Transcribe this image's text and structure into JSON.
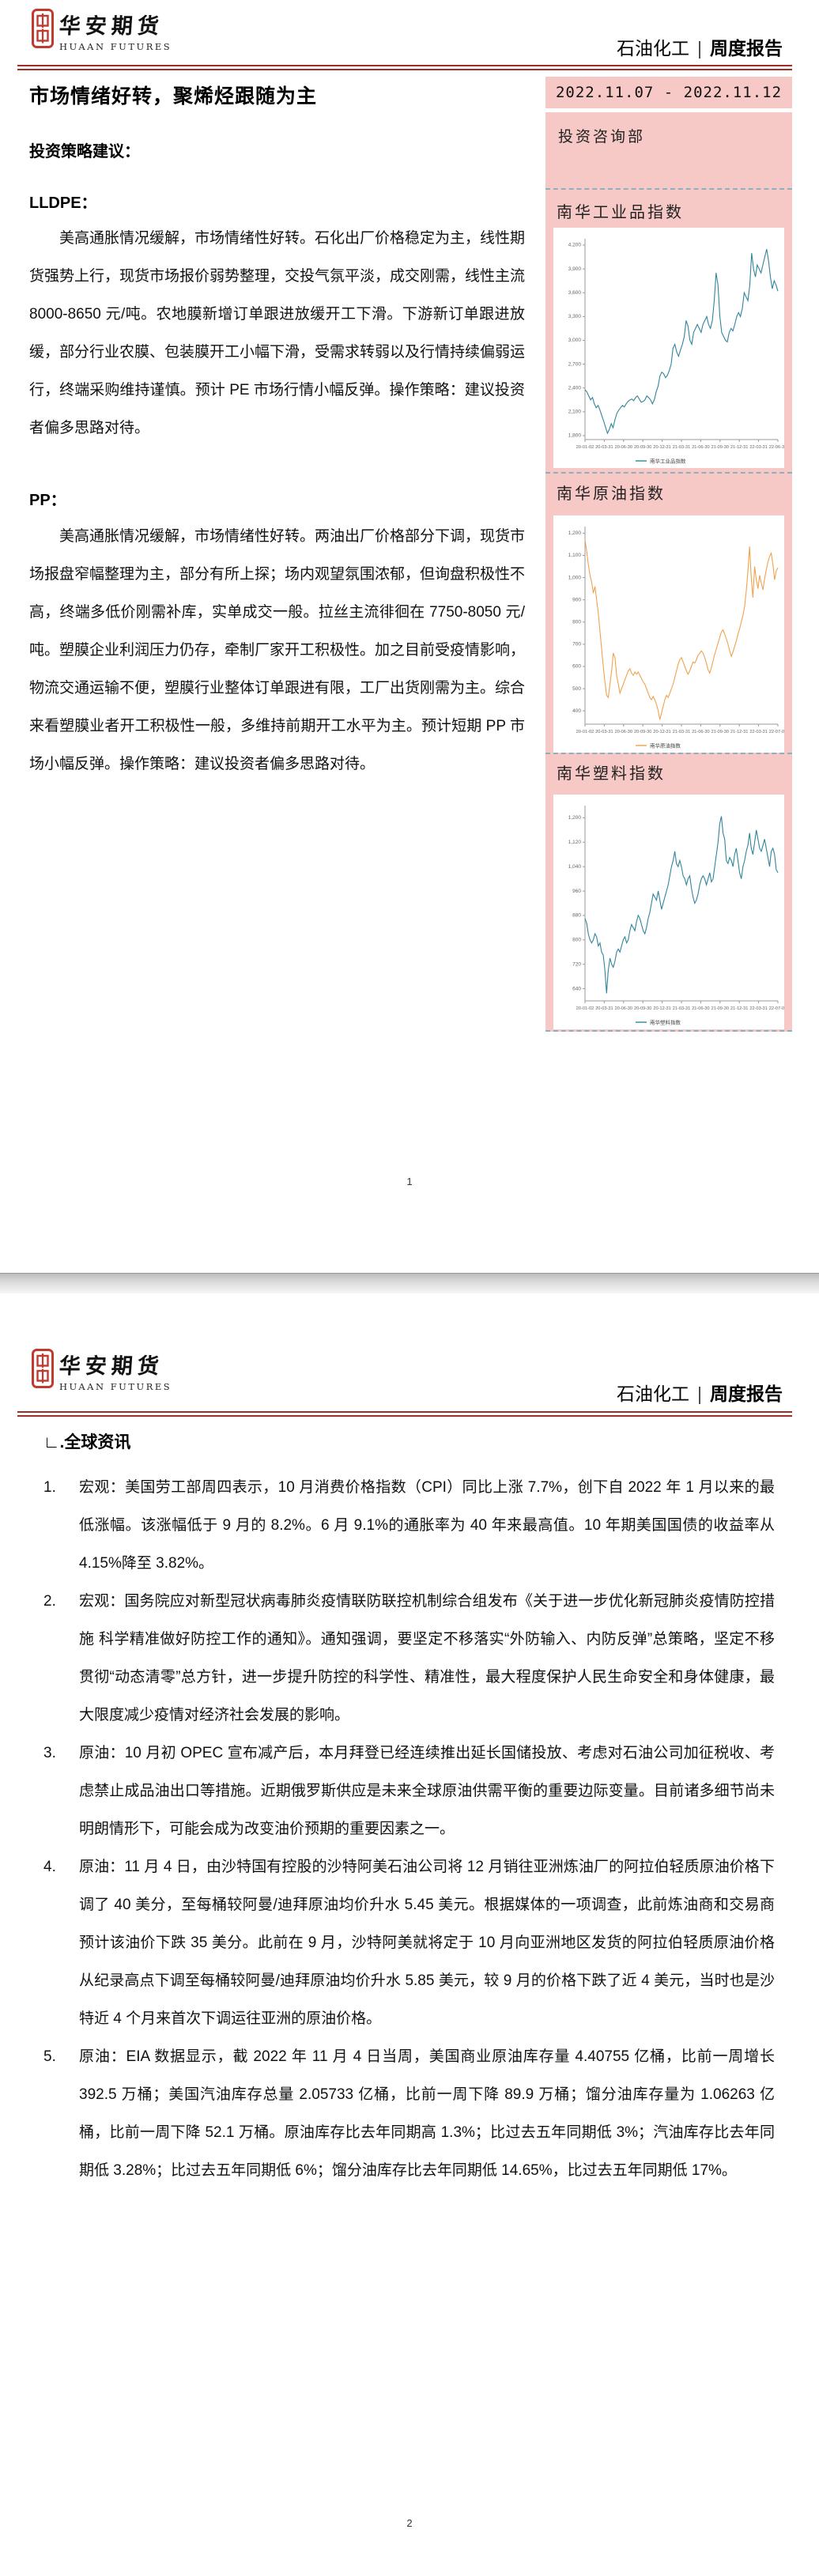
{
  "header": {
    "brand_cn": "华安期货",
    "brand_en": "HUAAN FUTURES",
    "report_type": "石油化工",
    "separator": "|",
    "report_kind": "周度报告"
  },
  "page1": {
    "title": "市场情绪好转，聚烯烃跟随为主",
    "date_range": "2022.11.07 - 2022.11.12",
    "department": "投资咨询部",
    "strategy_heading": "投资策略建议：",
    "sections": [
      {
        "heading": "LLDPE：",
        "body": "美高通胀情况缓解，市场情绪性好转。石化出厂价格稳定为主，线性期货强势上行，现货市场报价弱势整理，交投气氛平淡，成交刚需，线性主流 8000-8650 元/吨。农地膜新增订单跟进放缓开工下滑。下游新订单跟进放缓，部分行业农膜、包装膜开工小幅下滑，受需求转弱以及行情持续偏弱运行，终端采购维持谨慎。预计 PE 市场行情小幅反弹。操作策略：建议投资者偏多思路对待。"
      },
      {
        "heading": "PP：",
        "body": "美高通胀情况缓解，市场情绪性好转。两油出厂价格部分下调，现货市场报盘窄幅整理为主，部分有所上探；场内观望氛围浓郁，但询盘积极性不高，终端多低价刚需补库，实单成交一般。拉丝主流徘徊在 7750-8050 元/吨。塑膜企业利润压力仍存，牵制厂家开工积极性。加之目前受疫情影响，物流交通运输不便，塑膜行业整体订单跟进有限，工厂出货刚需为主。综合来看塑膜业者开工积极性一般，多维持前期开工水平为主。预计短期 PP 市场小幅反弹。操作策略：建议投资者偏多思路对待。"
      }
    ],
    "page_number": "1"
  },
  "page2": {
    "section_heading": "∟.全球资讯",
    "items": [
      {
        "num": "1.",
        "text": "宏观：美国劳工部周四表示，10 月消费价格指数（CPI）同比上涨 7.7%，创下自 2022 年 1 月以来的最低涨幅。该涨幅低于 9 月的 8.2%。6 月 9.1%的通胀率为 40 年来最高值。10 年期美国国债的收益率从 4.15%降至 3.82%。"
      },
      {
        "num": "2.",
        "text": "宏观：国务院应对新型冠状病毒肺炎疫情联防联控机制综合组发布《关于进一步优化新冠肺炎疫情防控措施 科学精准做好防控工作的通知》。通知强调，要坚定不移落实“外防输入、内防反弹”总策略，坚定不移贯彻“动态清零”总方针，进一步提升防控的科学性、精准性，最大程度保护人民生命安全和身体健康，最大限度减少疫情对经济社会发展的影响。"
      },
      {
        "num": "3.",
        "text": "原油：10 月初 OPEC 宣布减产后，本月拜登已经连续推出延长国储投放、考虑对石油公司加征税收、考虑禁止成品油出口等措施。近期俄罗斯供应是未来全球原油供需平衡的重要边际变量。目前诸多细节尚未明朗情形下，可能会成为改变油价预期的重要因素之一。"
      },
      {
        "num": "4.",
        "text": "原油：11 月 4 日，由沙特国有控股的沙特阿美石油公司将 12 月销往亚洲炼油厂的阿拉伯轻质原油价格下调了 40 美分，至每桶较阿曼/迪拜原油均价升水 5.45 美元。根据媒体的一项调查，此前炼油商和交易商预计该油价下跌 35 美分。此前在 9 月，沙特阿美就将定于 10 月向亚洲地区发货的阿拉伯轻质原油价格从纪录高点下调至每桶较阿曼/迪拜原油均价升水 5.85 美元，较 9 月的价格下跌了近 4 美元，当时也是沙特近 4 个月来首次下调运往亚洲的原油价格。"
      },
      {
        "num": "5.",
        "text": "原油：EIA 数据显示，截 2022 年 11 月 4 日当周，美国商业原油库存量 4.40755 亿桶，比前一周增长 392.5 万桶；美国汽油库存总量 2.05733 亿桶，比前一周下降 89.9 万桶；馏分油库存量为 1.06263 亿桶，比前一周下降 52.1 万桶。原油库存比去年同期高 1.3%；比过去五年同期低 3%；汽油库存比去年同期低 3.28%；比过去五年同期低 6%；馏分油库存比去年同期低 14.65%，比过去五年同期低 17%。"
      }
    ],
    "page_number": "2"
  },
  "chart_data": [
    {
      "type": "line",
      "title": "南华工业品指数",
      "legend": "南华工业品指数",
      "color": "#31859b",
      "y_min": 1750,
      "y_max": 4280,
      "y_ticks": [
        {
          "value": 1800,
          "label": "1,800"
        },
        {
          "value": 2100,
          "label": "2,100"
        },
        {
          "value": 2400,
          "label": "2,400"
        },
        {
          "value": 2700,
          "label": "2,700"
        },
        {
          "value": 3000,
          "label": "3,000"
        },
        {
          "value": 3300,
          "label": "3,300"
        },
        {
          "value": 3600,
          "label": "3,600"
        },
        {
          "value": 3900,
          "label": "3,900"
        },
        {
          "value": 4200,
          "label": "4,200"
        }
      ],
      "x_labels": [
        "20-01-02",
        "20-03-31",
        "20-06-30",
        "20-09-30",
        "20-12-31",
        "21-03-31",
        "21-06-30",
        "21-09-30",
        "21-12-31",
        "22-03-31",
        "22-06-30"
      ],
      "values": [
        2380,
        2350,
        2300,
        2250,
        2280,
        2200,
        2150,
        2180,
        2120,
        2050,
        1980,
        1900,
        1830,
        1880,
        1950,
        1900,
        2000,
        2080,
        2120,
        2150,
        2180,
        2160,
        2200,
        2230,
        2250,
        2260,
        2240,
        2280,
        2300,
        2260,
        2220,
        2230,
        2250,
        2300,
        2280,
        2250,
        2200,
        2250,
        2350,
        2420,
        2550,
        2600,
        2580,
        2530,
        2560,
        2620,
        2700,
        2900,
        2950,
        2850,
        2800,
        2880,
        2950,
        3050,
        3250,
        3180,
        3000,
        2950,
        3100,
        3150,
        3200,
        3150,
        3100,
        3200,
        3250,
        3300,
        3200,
        3150,
        3250,
        3500,
        3850,
        3700,
        3300,
        3100,
        3050,
        3000,
        2980,
        3100,
        3150,
        3120,
        3200,
        3300,
        3350,
        3300,
        3400,
        3600,
        3550,
        3500,
        3700,
        4100,
        3900,
        3800,
        3950,
        3900,
        3850,
        3950,
        4050,
        4150,
        4000,
        3800,
        3650,
        3750,
        3700,
        3620
      ]
    },
    {
      "type": "line",
      "title": "南华原油指数",
      "legend": "南华原油指数",
      "color": "#f0a24e",
      "y_min": 340,
      "y_max": 1230,
      "y_ticks": [
        {
          "value": 400,
          "label": "400"
        },
        {
          "value": 500,
          "label": "500"
        },
        {
          "value": 600,
          "label": "600"
        },
        {
          "value": 700,
          "label": "700"
        },
        {
          "value": 800,
          "label": "800"
        },
        {
          "value": 900,
          "label": "900"
        },
        {
          "value": 1000,
          "label": "1,000"
        },
        {
          "value": 1100,
          "label": "1,100"
        },
        {
          "value": 1200,
          "label": "1,200"
        }
      ],
      "x_labels": [
        "20-01-02",
        "20-03-31",
        "20-06-30",
        "20-09-30",
        "20-12-31",
        "21-03-31",
        "21-06-30",
        "21-09-30",
        "21-12-31",
        "22-03-31",
        "22-07-01"
      ],
      "values": [
        1170,
        1120,
        1060,
        1010,
        980,
        930,
        960,
        900,
        840,
        760,
        680,
        600,
        530,
        470,
        460,
        520,
        580,
        660,
        640,
        560,
        520,
        480,
        500,
        520,
        540,
        560,
        580,
        590,
        570,
        560,
        575,
        565,
        575,
        560,
        545,
        530,
        520,
        500,
        480,
        460,
        450,
        465,
        450,
        430,
        400,
        360,
        390,
        420,
        450,
        470,
        460,
        480,
        500,
        520,
        550,
        580,
        610,
        630,
        640,
        620,
        600,
        580,
        565,
        580,
        600,
        620,
        615,
        630,
        650,
        660,
        670,
        660,
        640,
        615,
        585,
        570,
        595,
        625,
        655,
        680,
        705,
        730,
        755,
        765,
        745,
        725,
        700,
        670,
        645,
        665,
        690,
        715,
        745,
        770,
        800,
        830,
        870,
        940,
        1030,
        1140,
        1000,
        910,
        1050,
        990,
        950,
        1010,
        975,
        945,
        995,
        1035,
        1070,
        1095,
        1110,
        1060,
        990,
        1030,
        1045
      ]
    },
    {
      "type": "line",
      "title": "南华塑料指数",
      "legend": "南华塑料指数",
      "color": "#31859b",
      "y_min": 600,
      "y_max": 1240,
      "y_ticks": [
        {
          "value": 640,
          "label": "640"
        },
        {
          "value": 720,
          "label": "720"
        },
        {
          "value": 800,
          "label": "800"
        },
        {
          "value": 880,
          "label": "880"
        },
        {
          "value": 960,
          "label": "960"
        },
        {
          "value": 1040,
          "label": "1,040"
        },
        {
          "value": 1120,
          "label": "1,120"
        },
        {
          "value": 1200,
          "label": "1,200"
        }
      ],
      "x_labels": [
        "20-01-02",
        "20-03-31",
        "20-06-30",
        "20-09-30",
        "20-12-31",
        "21-03-31",
        "21-06-30",
        "21-09-30",
        "21-12-31",
        "22-03-31",
        "22-07-01"
      ],
      "values": [
        870,
        855,
        820,
        800,
        790,
        800,
        820,
        810,
        780,
        790,
        760,
        750,
        700,
        625,
        700,
        740,
        720,
        710,
        730,
        760,
        770,
        760,
        780,
        800,
        810,
        790,
        800,
        830,
        850,
        840,
        830,
        860,
        880,
        870,
        850,
        830,
        820,
        840,
        870,
        890,
        920,
        950,
        940,
        930,
        960,
        930,
        900,
        920,
        940,
        960,
        980,
        1010,
        1040,
        1060,
        1090,
        1050,
        1040,
        1060,
        1040,
        1010,
        1000,
        980,
        1000,
        1010,
        970,
        940,
        920,
        930,
        950,
        980,
        1000,
        1010,
        1000,
        980,
        1000,
        1020,
        990,
        1000,
        1040,
        1080,
        1120,
        1180,
        1205,
        1150,
        1130,
        1060,
        1050,
        1070,
        1060,
        1040,
        1080,
        1100,
        1060,
        1020,
        1000,
        1040,
        1060,
        1090,
        1110,
        1150,
        1100,
        1080,
        1120,
        1160,
        1130,
        1100,
        1090,
        1110,
        1130,
        1100,
        1070,
        1040,
        1090,
        1100,
        1080,
        1030,
        1020
      ]
    }
  ],
  "colors": {
    "accent_red": "#9e2d28",
    "logo_red": "#bf3a2f",
    "panel_pink": "#f7c9c6",
    "chart_teal": "#31859b",
    "chart_orange": "#f0a24e"
  }
}
